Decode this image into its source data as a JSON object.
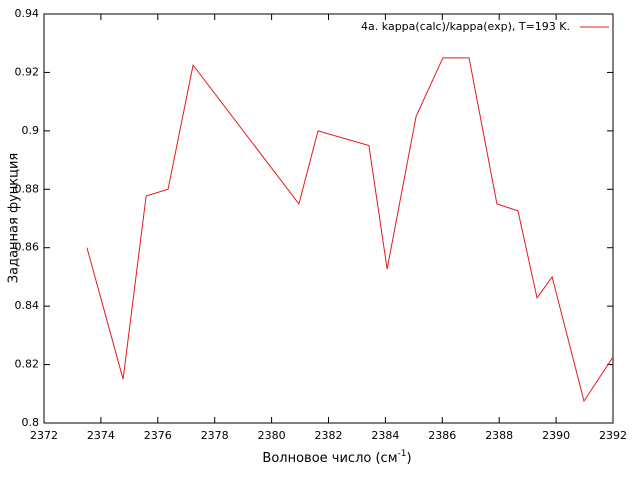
{
  "chart_data": {
    "type": "line",
    "xlabel": {
      "text": "Волновое число (см",
      "sup": "-1",
      "end": ")"
    },
    "ylabel": "Заданная функция",
    "x": [
      2373.51,
      2374.78,
      2375.59,
      2376.36,
      2377.24,
      2380.96,
      2381.63,
      2383.42,
      2384.06,
      2385.08,
      2386.02,
      2386.94,
      2387.92,
      2388.66,
      2389.33,
      2389.86,
      2390.98,
      2392.0
    ],
    "series": [
      {
        "name": "4a. kappa(calc)/kappa(exp), T=193 K.",
        "color": "#e41a1c",
        "values": [
          0.86,
          0.815,
          0.8777,
          0.88,
          0.9225,
          0.875,
          0.9,
          0.895,
          0.8527,
          0.905,
          0.925,
          0.925,
          0.875,
          0.8726,
          0.8428,
          0.85,
          0.8075,
          0.8226
        ]
      }
    ],
    "xlim": [
      2372,
      2392
    ],
    "xticks": [
      2372,
      2374,
      2376,
      2378,
      2380,
      2382,
      2384,
      2386,
      2388,
      2390,
      2392
    ],
    "ylim": [
      0.8,
      0.94
    ],
    "yticks": [
      0.8,
      0.82,
      0.84,
      0.86,
      0.88,
      0.9,
      0.92,
      0.94
    ],
    "legend": "top-right",
    "grid": false
  }
}
